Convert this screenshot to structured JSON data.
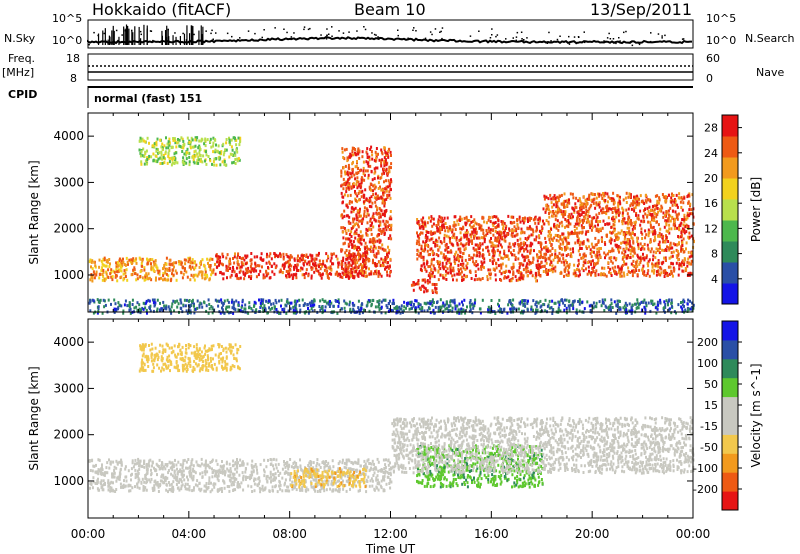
{
  "header": {
    "title": "Hokkaido (fitACF)",
    "beam": "Beam 10",
    "date": "13/Sep/2011"
  },
  "panels": {
    "nsky_label": "N.Sky",
    "nsky_ticks": [
      "10^5",
      "10^0"
    ],
    "nsearch_label": "N.Search",
    "freq_label": "Freq.",
    "freq_unit": "[MHz]",
    "freq_ticks": [
      "18",
      "8"
    ],
    "nave_label": "Nave",
    "nave_ticks": [
      "60",
      "0"
    ],
    "cpid_label": "CPID",
    "cpid_value": "normal (fast) 151"
  },
  "colors": {
    "power_scale": [
      "#1414e6",
      "#2a4fa6",
      "#2e8a5a",
      "#4db84d",
      "#b8e04d",
      "#f2d21e",
      "#f29a1e",
      "#ee5a14",
      "#e61414"
    ],
    "velocity_scale": [
      "#e61414",
      "#ee5a14",
      "#f29a1e",
      "#f2c84d",
      "#c8c8c0",
      "#c8c8c0",
      "#5ec82e",
      "#2e8a5a",
      "#2a4fa6",
      "#1414e6"
    ]
  },
  "chart_data": [
    {
      "type": "heatmap",
      "panel": "power",
      "ylabel": "Slant Range [km]",
      "xlabel": "",
      "x_ticks": [
        "00:00",
        "04:00",
        "08:00",
        "12:00",
        "16:00",
        "20:00",
        "00:00"
      ],
      "xlim_hours": [
        0,
        24
      ],
      "ylim": [
        200,
        4500
      ],
      "y_ticks": [
        1000,
        2000,
        3000,
        4000
      ],
      "colorbar": {
        "label": "Power [dB]",
        "ticks": [
          4,
          8,
          12,
          16,
          20,
          24,
          28
        ],
        "range": [
          0,
          30
        ]
      },
      "features": [
        {
          "name": "E-region band",
          "x": [
            0,
            24
          ],
          "y": [
            200,
            500
          ],
          "value": 6
        },
        {
          "name": "F-region band early",
          "x": [
            0,
            5
          ],
          "y": [
            900,
            1400
          ],
          "value": 22
        },
        {
          "name": "F-region intense 05-11",
          "x": [
            5,
            11
          ],
          "y": [
            950,
            1500
          ],
          "value": 27
        },
        {
          "name": "evening rise 10-12",
          "x": [
            10,
            12
          ],
          "y": [
            1000,
            3800
          ],
          "value": 26
        },
        {
          "name": "patch 13h",
          "x": [
            12.8,
            13.8
          ],
          "y": [
            650,
            900
          ],
          "value": 28
        },
        {
          "name": "descending 13-18",
          "x": [
            13,
            18
          ],
          "y": [
            900,
            2300
          ],
          "value": 26
        },
        {
          "name": "rising band 18-24",
          "x": [
            18,
            24
          ],
          "y": [
            1000,
            2800
          ],
          "value": 25
        },
        {
          "name": "high echoes 02-06",
          "x": [
            2,
            6
          ],
          "y": [
            3400,
            4000
          ],
          "value": 14
        }
      ]
    },
    {
      "type": "heatmap",
      "panel": "velocity",
      "ylabel": "Slant Range [km]",
      "xlabel": "Time UT",
      "x_ticks": [
        "00:00",
        "04:00",
        "08:00",
        "12:00",
        "16:00",
        "20:00",
        "00:00"
      ],
      "xlim_hours": [
        0,
        24
      ],
      "ylim": [
        200,
        4500
      ],
      "y_ticks": [
        1000,
        2000,
        3000,
        4000
      ],
      "colorbar": {
        "label": "Velocity [m s^-1]",
        "ticks": [
          -200,
          -100,
          -50,
          -15,
          15,
          50,
          100,
          200
        ],
        "range": [
          -250,
          250
        ]
      },
      "features": [
        {
          "name": "low-velocity band 00-12",
          "x": [
            0,
            12
          ],
          "y": [
            800,
            1500
          ],
          "value": 0
        },
        {
          "name": "negative patch 08-11",
          "x": [
            8,
            11
          ],
          "y": [
            900,
            1300
          ],
          "value": -40
        },
        {
          "name": "positive band 13-18",
          "x": [
            13,
            18
          ],
          "y": [
            900,
            1800
          ],
          "value": 40
        },
        {
          "name": "grey band 12-24",
          "x": [
            12,
            24
          ],
          "y": [
            1200,
            2400
          ],
          "value": 0
        },
        {
          "name": "high echoes 02-06",
          "x": [
            2,
            6
          ],
          "y": [
            3400,
            4000
          ],
          "value": -30
        }
      ]
    }
  ]
}
